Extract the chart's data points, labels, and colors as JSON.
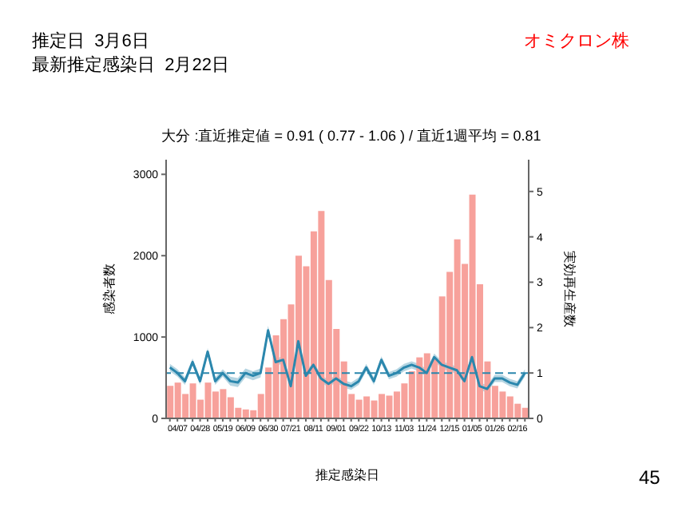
{
  "chart_data": {
    "type": "bar",
    "title": "大分 :直近推定値 = 0.91 ( 0.77 - 1.06 ) / 直近1週平均 = 0.81",
    "xlabel": "推定感染日",
    "ylabel": "感染者数",
    "y2label": "実効再生産数",
    "annotations": [
      "推定日  3月6日",
      "最新推定感染日  2月22日",
      "オミクロン株",
      "45"
    ],
    "categories": [
      null,
      "04/07",
      null,
      null,
      "04/28",
      null,
      null,
      "05/19",
      null,
      null,
      "06/09",
      null,
      null,
      "06/30",
      null,
      null,
      "07/21",
      null,
      null,
      "08/11",
      null,
      null,
      "09/01",
      null,
      null,
      "09/22",
      null,
      null,
      "10/13",
      null,
      null,
      "11/03",
      null,
      null,
      "11/24",
      null,
      null,
      "12/15",
      null,
      null,
      "01/05",
      null,
      null,
      "01/26",
      null,
      null,
      "02/16",
      null
    ],
    "series": [
      {
        "color": "#f7a19b",
        "values": [
          400,
          440,
          300,
          430,
          230,
          440,
          330,
          360,
          260,
          130,
          110,
          100,
          300,
          625,
          1020,
          1220,
          1400,
          2000,
          1870,
          2300,
          2550,
          1700,
          1100,
          700,
          300,
          230,
          270,
          220,
          300,
          280,
          330,
          430,
          580,
          750,
          800,
          730,
          1500,
          1800,
          2200,
          1900,
          2750,
          1650,
          700,
          400,
          330,
          270,
          180,
          130
        ]
      },
      {
        "type": "line",
        "axis": "y2",
        "color": "#2b87ad",
        "values": [
          1.12,
          1.0,
          0.82,
          1.24,
          0.82,
          1.47,
          0.82,
          1.0,
          0.82,
          0.79,
          1.0,
          0.94,
          1.0,
          1.94,
          1.24,
          1.29,
          0.71,
          1.7,
          0.94,
          1.18,
          0.88,
          0.76,
          0.88,
          0.76,
          0.71,
          0.82,
          1.12,
          0.82,
          1.29,
          0.94,
          1.0,
          1.12,
          1.18,
          1.12,
          1.0,
          1.35,
          1.18,
          1.12,
          1.06,
          0.82,
          1.35,
          0.71,
          0.65,
          0.88,
          0.88,
          0.79,
          0.74,
          1.0
        ],
        "lower": [
          1.04,
          0.92,
          0.74,
          1.16,
          0.74,
          1.39,
          0.74,
          0.92,
          0.72,
          0.69,
          0.9,
          0.84,
          0.9,
          1.84,
          1.16,
          1.21,
          0.63,
          1.62,
          0.86,
          1.1,
          0.8,
          0.68,
          0.8,
          0.68,
          0.63,
          0.74,
          1.04,
          0.74,
          1.21,
          0.86,
          0.92,
          1.04,
          1.1,
          1.04,
          0.92,
          1.27,
          1.1,
          1.04,
          0.98,
          0.74,
          1.27,
          0.63,
          0.57,
          0.8,
          0.8,
          0.71,
          0.66,
          0.92
        ],
        "upper": [
          1.2,
          1.08,
          0.9,
          1.32,
          0.9,
          1.55,
          0.9,
          1.08,
          0.92,
          0.89,
          1.1,
          1.04,
          1.1,
          2.04,
          1.32,
          1.37,
          0.79,
          1.78,
          1.02,
          1.26,
          0.96,
          0.84,
          0.96,
          0.84,
          0.79,
          0.9,
          1.2,
          0.9,
          1.37,
          1.02,
          1.08,
          1.2,
          1.26,
          1.2,
          1.08,
          1.43,
          1.26,
          1.2,
          1.14,
          0.9,
          1.43,
          0.79,
          0.73,
          0.96,
          0.96,
          0.87,
          0.82,
          1.08
        ]
      }
    ],
    "ylim": [
      0,
      3180
    ],
    "yticks": [
      0,
      1000,
      2000,
      3000
    ],
    "y2lim": [
      0,
      5.7
    ],
    "y2ticks": [
      0,
      1,
      2,
      3,
      4,
      5
    ],
    "ref_lines": [
      {
        "axis": "y2",
        "value": 1,
        "color": "#2b87ad",
        "line_style": "dashed"
      }
    ]
  }
}
